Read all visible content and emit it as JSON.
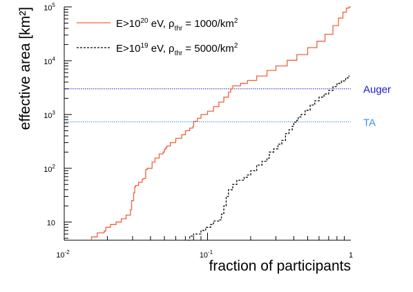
{
  "chart_data": {
    "type": "line",
    "title": "",
    "xlabel": "fraction of participants",
    "ylabel": "effective area [km²]",
    "xscale": "log",
    "yscale": "log",
    "xlim": [
      0.01,
      1
    ],
    "ylim": [
      4.6,
      100000
    ],
    "grid": false,
    "legend_position": "top-left",
    "x_tick_labels": [
      {
        "value": 0.01,
        "base": "10",
        "exp": "-2"
      },
      {
        "value": 0.1,
        "base": "10",
        "exp": "-1"
      },
      {
        "value": 1,
        "base": "1",
        "exp": ""
      }
    ],
    "y_tick_labels": [
      {
        "value": 10,
        "base": "10",
        "exp": ""
      },
      {
        "value": 100,
        "base": "10",
        "exp": "2"
      },
      {
        "value": 1000,
        "base": "10",
        "exp": "3"
      },
      {
        "value": 10000,
        "base": "10",
        "exp": "4"
      },
      {
        "value": 100000,
        "base": "10",
        "exp": "5"
      }
    ],
    "series": [
      {
        "legend": {
          "pre": "E>10",
          "sup": "20",
          "mid": " eV, ρ",
          "sub": "thr",
          "post": " = 1000/km",
          "sup2": "2"
        },
        "color": "#f0603c",
        "dash": "solid",
        "points": [
          [
            0.0155,
            4.6
          ],
          [
            0.0155,
            5.3
          ],
          [
            0.017,
            5.3
          ],
          [
            0.017,
            6.3
          ],
          [
            0.019,
            6.8
          ],
          [
            0.0195,
            8.0
          ],
          [
            0.021,
            9.0
          ],
          [
            0.023,
            10
          ],
          [
            0.025,
            11.5
          ],
          [
            0.027,
            13.5
          ],
          [
            0.029,
            17
          ],
          [
            0.0295,
            25
          ],
          [
            0.0305,
            35
          ],
          [
            0.031,
            45
          ],
          [
            0.0315,
            48
          ],
          [
            0.033,
            55
          ],
          [
            0.035,
            63
          ],
          [
            0.036,
            65
          ],
          [
            0.037,
            95
          ],
          [
            0.038,
            100
          ],
          [
            0.041,
            130
          ],
          [
            0.043,
            155
          ],
          [
            0.046,
            185
          ],
          [
            0.049,
            200
          ],
          [
            0.05,
            225
          ],
          [
            0.051,
            240
          ],
          [
            0.052,
            260
          ],
          [
            0.055,
            300
          ],
          [
            0.06,
            360
          ],
          [
            0.066,
            420
          ],
          [
            0.07,
            500
          ],
          [
            0.075,
            560
          ],
          [
            0.079,
            600
          ],
          [
            0.08,
            750
          ],
          [
            0.085,
            850
          ],
          [
            0.09,
            1000
          ],
          [
            0.1,
            1150
          ],
          [
            0.11,
            1400
          ],
          [
            0.12,
            1700
          ],
          [
            0.13,
            2100
          ],
          [
            0.14,
            2600
          ],
          [
            0.145,
            3000
          ],
          [
            0.15,
            3400
          ],
          [
            0.17,
            3800
          ],
          [
            0.19,
            4300
          ],
          [
            0.22,
            5200
          ],
          [
            0.26,
            6600
          ],
          [
            0.3,
            8000
          ],
          [
            0.36,
            10200
          ],
          [
            0.42,
            13000
          ],
          [
            0.5,
            17500
          ],
          [
            0.58,
            23000
          ],
          [
            0.66,
            31000
          ],
          [
            0.75,
            45000
          ],
          [
            0.82,
            62000
          ],
          [
            0.88,
            80000
          ],
          [
            0.93,
            95000
          ],
          [
            0.97,
            100000
          ],
          [
            1.0,
            100000
          ]
        ]
      },
      {
        "legend": {
          "pre": "E>10",
          "sup": "19",
          "mid": " eV, ρ",
          "sub": "thr",
          "post": " = 5000/km",
          "sup2": "2"
        },
        "color": "#000000",
        "dash": "dashed",
        "points": [
          [
            0.073,
            4.6
          ],
          [
            0.075,
            5.5
          ],
          [
            0.08,
            6.0
          ],
          [
            0.09,
            7.0
          ],
          [
            0.097,
            8.0
          ],
          [
            0.105,
            9.0
          ],
          [
            0.11,
            10.5
          ],
          [
            0.12,
            11
          ],
          [
            0.125,
            14
          ],
          [
            0.13,
            20
          ],
          [
            0.135,
            30
          ],
          [
            0.14,
            40
          ],
          [
            0.15,
            50
          ],
          [
            0.16,
            60
          ],
          [
            0.18,
            68
          ],
          [
            0.19,
            75
          ],
          [
            0.2,
            90
          ],
          [
            0.22,
            115
          ],
          [
            0.24,
            135
          ],
          [
            0.26,
            155
          ],
          [
            0.27,
            200
          ],
          [
            0.29,
            230
          ],
          [
            0.31,
            280
          ],
          [
            0.33,
            330
          ],
          [
            0.35,
            440
          ],
          [
            0.37,
            520
          ],
          [
            0.39,
            600
          ],
          [
            0.4,
            720
          ],
          [
            0.42,
            780
          ],
          [
            0.43,
            900
          ],
          [
            0.45,
            1000
          ],
          [
            0.48,
            1200
          ],
          [
            0.52,
            1500
          ],
          [
            0.56,
            1800
          ],
          [
            0.6,
            2100
          ],
          [
            0.65,
            2400
          ],
          [
            0.7,
            2800
          ],
          [
            0.75,
            3300
          ],
          [
            0.8,
            3800
          ],
          [
            0.86,
            4200
          ],
          [
            0.92,
            4800
          ],
          [
            0.97,
            5300
          ]
        ]
      }
    ],
    "reference_lines": [
      {
        "label": "Auger",
        "value": 3000,
        "color": "#2f2fd0",
        "label_color": "#1a1acc"
      },
      {
        "label": "TA",
        "value": 730,
        "color": "#5aa0e0",
        "label_color": "#3b94dd"
      }
    ]
  }
}
